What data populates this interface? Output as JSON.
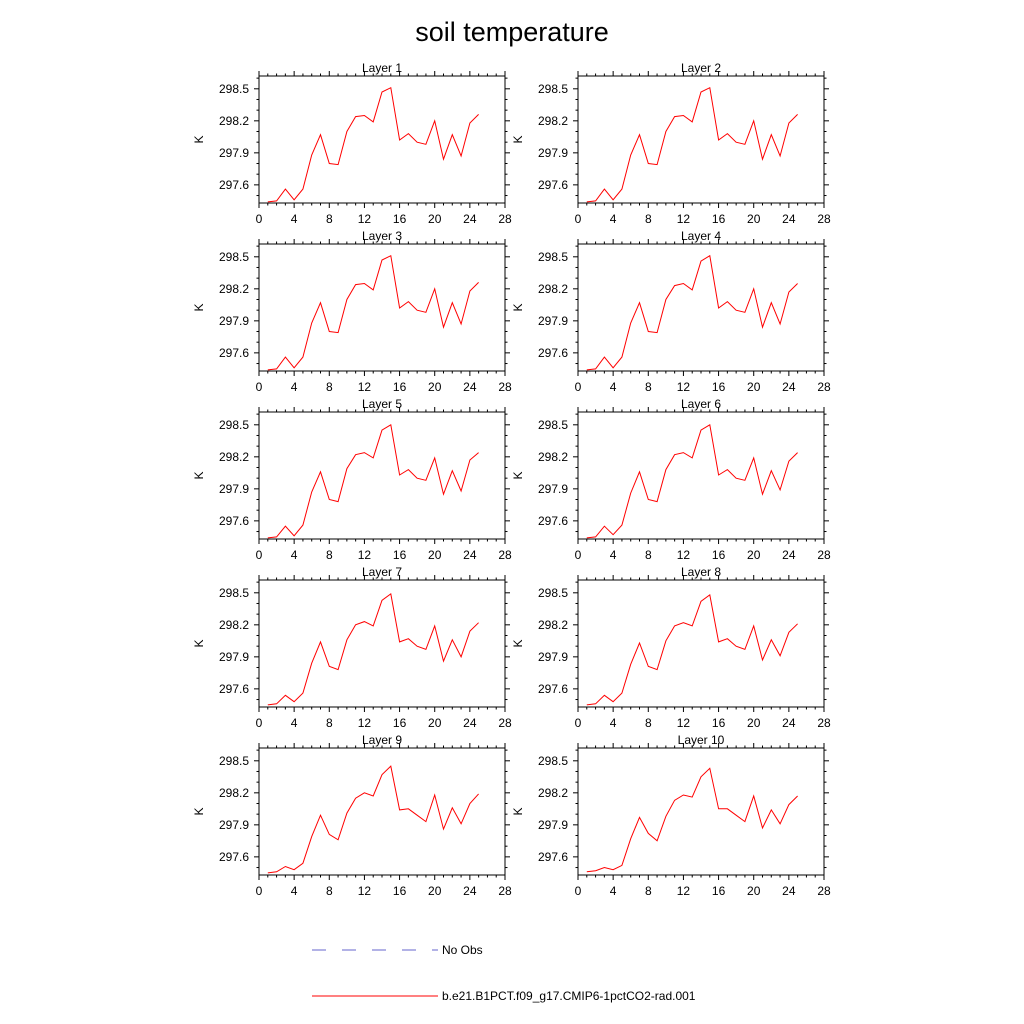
{
  "chart_data": {
    "type": "line",
    "title": "soil temperature",
    "ylabel": "K",
    "xlim": [
      0,
      28
    ],
    "ylim": [
      297.43,
      298.62
    ],
    "xticks": [
      0,
      4,
      8,
      12,
      16,
      20,
      24,
      28
    ],
    "yticks": [
      297.6,
      297.9,
      298.2,
      298.5
    ],
    "ytick_labels": [
      "297.6",
      "297.9",
      "298.2",
      "298.5"
    ],
    "legend": [
      {
        "label": "No Obs",
        "color": "#6666cc",
        "style": "dashed"
      },
      {
        "label": "b.e21.B1PCT.f09_g17.CMIP6-1pctCO2-rad.001",
        "color": "#ff0000",
        "style": "solid"
      }
    ],
    "x": [
      1,
      2,
      3,
      4,
      5,
      6,
      7,
      8,
      9,
      10,
      11,
      12,
      13,
      14,
      15,
      16,
      17,
      18,
      19,
      20,
      21,
      22,
      23,
      24,
      25
    ],
    "panels": [
      {
        "title": "Layer 1",
        "values": [
          297.44,
          297.45,
          297.56,
          297.46,
          297.56,
          297.88,
          298.07,
          297.8,
          297.79,
          298.1,
          298.24,
          298.25,
          298.19,
          298.47,
          298.51,
          298.02,
          298.08,
          298.0,
          297.98,
          298.2,
          297.84,
          298.07,
          297.87,
          298.18,
          298.26
        ]
      },
      {
        "title": "Layer 2",
        "values": [
          297.44,
          297.45,
          297.56,
          297.46,
          297.56,
          297.88,
          298.07,
          297.8,
          297.79,
          298.1,
          298.24,
          298.25,
          298.19,
          298.47,
          298.51,
          298.02,
          298.08,
          298.0,
          297.98,
          298.2,
          297.84,
          298.07,
          297.87,
          298.18,
          298.26
        ]
      },
      {
        "title": "Layer 3",
        "values": [
          297.44,
          297.45,
          297.56,
          297.46,
          297.56,
          297.88,
          298.07,
          297.8,
          297.79,
          298.1,
          298.24,
          298.25,
          298.19,
          298.47,
          298.51,
          298.02,
          298.08,
          298.0,
          297.98,
          298.2,
          297.84,
          298.07,
          297.87,
          298.18,
          298.26
        ]
      },
      {
        "title": "Layer 4",
        "values": [
          297.44,
          297.45,
          297.56,
          297.46,
          297.56,
          297.88,
          298.07,
          297.8,
          297.79,
          298.1,
          298.23,
          298.25,
          298.19,
          298.46,
          298.51,
          298.02,
          298.08,
          298.0,
          297.98,
          298.2,
          297.84,
          298.07,
          297.87,
          298.17,
          298.25
        ]
      },
      {
        "title": "Layer 5",
        "values": [
          297.44,
          297.45,
          297.55,
          297.46,
          297.56,
          297.87,
          298.06,
          297.8,
          297.78,
          298.09,
          298.22,
          298.24,
          298.19,
          298.45,
          298.5,
          298.03,
          298.08,
          298.0,
          297.98,
          298.19,
          297.85,
          298.07,
          297.88,
          298.17,
          298.24
        ]
      },
      {
        "title": "Layer 6",
        "values": [
          297.44,
          297.45,
          297.55,
          297.47,
          297.56,
          297.86,
          298.06,
          297.8,
          297.78,
          298.08,
          298.22,
          298.24,
          298.19,
          298.45,
          298.5,
          298.03,
          298.08,
          298.0,
          297.98,
          298.19,
          297.85,
          298.07,
          297.89,
          298.16,
          298.24
        ]
      },
      {
        "title": "Layer 7",
        "values": [
          297.45,
          297.46,
          297.54,
          297.48,
          297.56,
          297.84,
          298.04,
          297.81,
          297.78,
          298.06,
          298.2,
          298.23,
          298.19,
          298.43,
          298.49,
          298.04,
          298.07,
          298.0,
          297.97,
          298.19,
          297.86,
          298.06,
          297.9,
          298.14,
          298.22
        ]
      },
      {
        "title": "Layer 8",
        "values": [
          297.45,
          297.46,
          297.54,
          297.48,
          297.56,
          297.83,
          298.03,
          297.81,
          297.78,
          298.05,
          298.19,
          298.22,
          298.19,
          298.42,
          298.48,
          298.04,
          298.07,
          298.0,
          297.97,
          298.19,
          297.87,
          298.06,
          297.91,
          298.13,
          298.21
        ]
      },
      {
        "title": "Layer 9",
        "values": [
          297.45,
          297.46,
          297.51,
          297.48,
          297.54,
          297.79,
          297.99,
          297.81,
          297.76,
          298.01,
          298.15,
          298.2,
          298.17,
          298.37,
          298.45,
          298.04,
          298.05,
          297.99,
          297.93,
          298.18,
          297.86,
          298.06,
          297.91,
          298.1,
          298.19
        ]
      },
      {
        "title": "Layer 10",
        "values": [
          297.46,
          297.47,
          297.5,
          297.48,
          297.52,
          297.77,
          297.97,
          297.82,
          297.75,
          297.98,
          298.13,
          298.18,
          298.16,
          298.35,
          298.43,
          298.05,
          298.05,
          297.99,
          297.93,
          298.17,
          297.87,
          298.04,
          297.91,
          298.09,
          298.17
        ]
      }
    ]
  }
}
